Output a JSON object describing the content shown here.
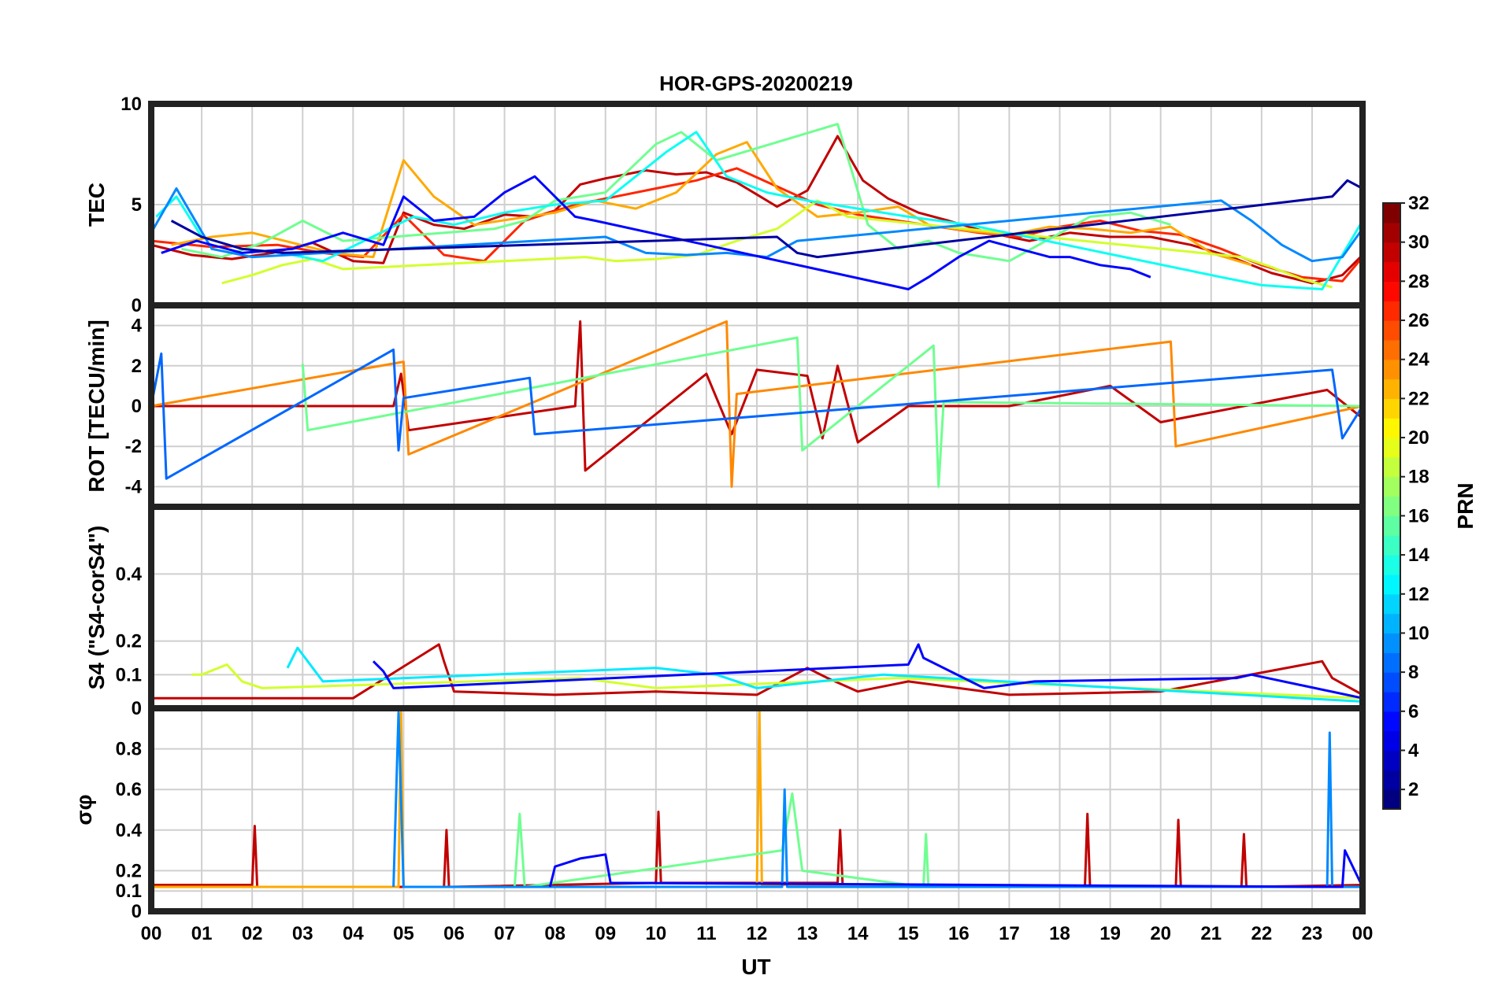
{
  "chart_data": {
    "type": "line",
    "title": "HOR-GPS-20200219",
    "xlabel": "UT",
    "xlim": [
      0,
      24
    ],
    "x_tick_labels": [
      "00",
      "01",
      "02",
      "03",
      "04",
      "05",
      "06",
      "07",
      "08",
      "09",
      "10",
      "11",
      "12",
      "13",
      "14",
      "15",
      "16",
      "17",
      "18",
      "19",
      "20",
      "21",
      "22",
      "23",
      "00"
    ],
    "panels": [
      {
        "name": "tec",
        "ylabel": "TEC",
        "ylim": [
          0,
          10
        ],
        "y_ticks": [
          0,
          5,
          10
        ],
        "y_tick_labels": [
          "0",
          "5",
          "10"
        ],
        "series": [
          {
            "name": "PRN 30",
            "prn": 30,
            "x": [
              0,
              0.8,
              1.6,
              2.4,
              3.2,
              4.0,
              4.6,
              5.0,
              5.6,
              6.2,
              7.0,
              7.6,
              8.0,
              8.5,
              9.0,
              9.8,
              10.4,
              11.0,
              11.6,
              12.4,
              13.0,
              13.6,
              14.1,
              14.6,
              15.2,
              15.8,
              16.6,
              17.4,
              18.2,
              19.0,
              19.8,
              20.6,
              21.4,
              22.2,
              23.0,
              23.6,
              24
            ],
            "y": [
              3.0,
              2.5,
              2.3,
              2.6,
              3.1,
              2.2,
              2.1,
              4.6,
              4.0,
              3.8,
              4.5,
              4.4,
              4.7,
              6.0,
              6.3,
              6.7,
              6.5,
              6.6,
              6.1,
              4.9,
              5.7,
              8.4,
              6.2,
              5.3,
              4.6,
              4.2,
              3.6,
              3.2,
              3.6,
              3.4,
              3.4,
              3.0,
              2.4,
              1.6,
              1.1,
              1.5,
              2.5
            ]
          },
          {
            "name": "PRN 27",
            "prn": 27,
            "x": [
              0,
              1.2,
              2.5,
              3.4,
              4.2,
              5.0,
              5.8,
              6.6,
              7.4,
              8.4,
              9.2,
              10.0,
              10.8,
              11.6,
              12.4,
              13.2,
              14.0,
              14.8,
              15.6,
              16.4,
              17.2,
              18.0,
              18.8,
              19.6,
              20.4,
              21.2,
              22.0,
              22.8,
              23.6,
              24
            ],
            "y": [
              3.2,
              2.9,
              3.0,
              2.6,
              2.4,
              4.5,
              2.5,
              2.2,
              4.2,
              5.0,
              5.4,
              5.8,
              6.2,
              6.8,
              5.9,
              5.0,
              4.5,
              4.2,
              3.9,
              3.6,
              3.4,
              3.9,
              4.2,
              3.7,
              3.5,
              2.8,
              2.0,
              1.4,
              1.2,
              2.4
            ]
          },
          {
            "name": "PRN 23",
            "prn": 23,
            "x": [
              0.4,
              1.2,
              2.0,
              2.8,
              3.6,
              4.4,
              5.0,
              5.6,
              6.4,
              7.2,
              8.0,
              8.8,
              9.6,
              10.4,
              11.2,
              11.8,
              12.4,
              13.2,
              14.0,
              14.8,
              15.4,
              16.2,
              17.0,
              17.8,
              18.6,
              19.4,
              20.2,
              21.0,
              21.8
            ],
            "y": [
              3.0,
              3.4,
              3.6,
              3.1,
              2.6,
              2.4,
              7.2,
              5.4,
              4.0,
              4.3,
              4.6,
              5.2,
              4.8,
              5.6,
              7.5,
              8.1,
              5.8,
              4.4,
              4.6,
              4.9,
              4.0,
              3.7,
              3.5,
              3.9,
              3.8,
              3.6,
              3.9,
              2.6,
              2.0
            ]
          },
          {
            "name": "PRN 19",
            "prn": 19,
            "x": [
              1.4,
              2.0,
              2.6,
              3.2,
              3.8,
              8.6,
              9.2,
              10.0,
              10.8,
              11.6,
              12.4,
              13.2,
              13.8,
              21.6,
              22.2,
              22.8,
              23.4
            ],
            "y": [
              1.1,
              1.5,
              2.0,
              2.3,
              1.8,
              2.4,
              2.2,
              2.3,
              2.5,
              3.2,
              3.8,
              5.2,
              4.4,
              2.4,
              1.9,
              1.3,
              0.9
            ]
          },
          {
            "name": "PRN 16",
            "prn": 16,
            "x": [
              0.6,
              1.4,
              2.2,
              3.0,
              3.8,
              6.8,
              7.4,
              8.0,
              9.0,
              10.0,
              10.5,
              11.2,
              13.6,
              14.2,
              14.8,
              15.4,
              16.0,
              17.0,
              18.6,
              19.4,
              20.2
            ],
            "y": [
              2.8,
              2.4,
              3.1,
              4.2,
              3.2,
              3.8,
              4.2,
              5.2,
              5.6,
              8.0,
              8.6,
              7.2,
              9.0,
              4.0,
              2.8,
              3.2,
              2.6,
              2.2,
              4.4,
              4.6,
              4.0
            ]
          },
          {
            "name": "PRN 13",
            "prn": 13,
            "x": [
              0.1,
              0.5,
              1.0,
              1.8,
              2.6,
              3.4,
              5.2,
              6.0,
              7.0,
              8.0,
              9.0,
              10.2,
              10.8,
              11.4,
              12.2,
              13.0,
              14.0,
              15.0,
              16.2,
              21.2,
              22.0,
              22.6,
              23.2,
              24
            ],
            "y": [
              4.4,
              5.4,
              3.4,
              2.8,
              2.6,
              2.2,
              4.4,
              4.0,
              4.6,
              5.0,
              5.2,
              7.6,
              8.6,
              6.4,
              5.6,
              5.2,
              4.8,
              4.4,
              4.0,
              1.4,
              1.0,
              0.9,
              0.8,
              4.2
            ]
          },
          {
            "name": "PRN 9",
            "prn": 9,
            "x": [
              0,
              0.5,
              1.2,
              2.0,
              9.0,
              9.8,
              10.6,
              11.4,
              12.2,
              12.8,
              21.2,
              21.8,
              22.4,
              23.0,
              23.6,
              24
            ],
            "y": [
              3.6,
              5.8,
              2.8,
              2.4,
              3.4,
              2.6,
              2.5,
              2.6,
              2.4,
              3.2,
              5.2,
              4.2,
              3.0,
              2.2,
              2.4,
              3.8
            ]
          },
          {
            "name": "PRN 5",
            "prn": 5,
            "x": [
              0.2,
              0.9,
              1.8,
              2.8,
              3.8,
              4.6,
              5.0,
              5.6,
              6.4,
              7.0,
              7.6,
              8.4,
              8.8,
              15.0,
              15.4,
              16.0,
              16.6,
              17.2,
              17.8,
              18.2,
              18.8,
              19.4,
              19.8
            ],
            "y": [
              2.6,
              3.2,
              2.6,
              2.8,
              3.6,
              3.0,
              5.4,
              4.2,
              4.4,
              5.6,
              6.4,
              4.4,
              4.2,
              0.8,
              1.4,
              2.4,
              3.2,
              2.8,
              2.4,
              2.4,
              2.0,
              1.8,
              1.4
            ]
          },
          {
            "name": "PRN 2",
            "prn": 2,
            "x": [
              0.4,
              1.0,
              1.8,
              2.6,
              12.4,
              12.8,
              13.2,
              23.4,
              23.7,
              24
            ],
            "y": [
              4.2,
              3.4,
              2.8,
              2.6,
              3.4,
              2.6,
              2.4,
              5.4,
              6.2,
              5.8
            ]
          }
        ]
      },
      {
        "name": "rot",
        "ylabel": "ROT [TECU/min]",
        "ylim": [
          -5,
          5
        ],
        "y_ticks": [
          -4,
          -2,
          0,
          2,
          4
        ],
        "y_tick_labels": [
          "-4",
          "-2",
          "0",
          "2",
          "4"
        ],
        "series": [
          {
            "name": "PRN 30 ROT",
            "prn": 30,
            "x": [
              0,
              4.8,
              4.95,
              5.1,
              8.4,
              8.5,
              8.6,
              11.0,
              11.5,
              12.0,
              13.0,
              13.3,
              13.6,
              14.0,
              15.0,
              17.0,
              19.0,
              20.0,
              23.3,
              24
            ],
            "y": [
              0,
              0,
              1.6,
              -1.2,
              0,
              4.2,
              -3.2,
              1.6,
              -1.4,
              1.8,
              1.5,
              -1.6,
              2.0,
              -1.8,
              0,
              0,
              1.0,
              -0.8,
              0.8,
              -0.6
            ]
          },
          {
            "name": "PRN 24 ROT",
            "prn": 24,
            "x": [
              0,
              5.0,
              5.1,
              11.4,
              11.5,
              11.6,
              20.2,
              20.3,
              24
            ],
            "y": [
              0,
              2.2,
              -2.4,
              4.2,
              -4.0,
              0.6,
              3.2,
              -2.0,
              0
            ]
          },
          {
            "name": "PRN 16 ROT",
            "prn": 16,
            "x": [
              3.0,
              3.1,
              12.8,
              12.9,
              15.5,
              15.6,
              15.7,
              24
            ],
            "y": [
              2.1,
              -1.2,
              3.4,
              -2.2,
              3.0,
              -4.0,
              0.2,
              0
            ]
          },
          {
            "name": "PRN 8 ROT",
            "prn": 8,
            "x": [
              0,
              0.2,
              0.3,
              4.8,
              4.9,
              5.0,
              7.5,
              7.6,
              23.4,
              23.6,
              24
            ],
            "y": [
              0,
              2.6,
              -3.6,
              2.8,
              -2.2,
              0.4,
              1.4,
              -1.4,
              1.8,
              -1.6,
              0
            ]
          }
        ]
      },
      {
        "name": "s4",
        "ylabel": "S4 (\"S4-corS4\")",
        "ylim": [
          0,
          0.6
        ],
        "y_ticks": [
          0,
          0.1,
          0.2,
          0.4
        ],
        "y_tick_labels": [
          "0",
          "0.1",
          "0.2",
          "0.4"
        ],
        "series": [
          {
            "name": "PRN 30 S4",
            "prn": 30,
            "x": [
              0,
              2.0,
              4.0,
              5.7,
              5.8,
              6.0,
              8.0,
              10.0,
              12.0,
              13.0,
              13.4,
              14.0,
              15.0,
              17.0,
              20.0,
              23.2,
              23.4,
              24
            ],
            "y": [
              0.03,
              0.03,
              0.03,
              0.19,
              0.14,
              0.05,
              0.04,
              0.05,
              0.04,
              0.12,
              0.09,
              0.05,
              0.08,
              0.04,
              0.05,
              0.14,
              0.09,
              0.04
            ]
          },
          {
            "name": "PRN 19 S4",
            "prn": 19,
            "x": [
              0.8,
              1.0,
              1.5,
              1.8,
              2.2,
              8.5,
              9.0,
              10.0,
              14.8,
              24
            ],
            "y": [
              0.1,
              0.1,
              0.13,
              0.08,
              0.06,
              0.09,
              0.08,
              0.06,
              0.09,
              0.03
            ]
          },
          {
            "name": "PRN 12 S4",
            "prn": 12,
            "x": [
              2.7,
              2.9,
              3.1,
              3.4,
              10.0,
              11.2,
              12.0,
              14.5,
              24
            ],
            "y": [
              0.12,
              0.18,
              0.14,
              0.08,
              0.12,
              0.1,
              0.06,
              0.1,
              0.02
            ]
          },
          {
            "name": "PRN 5 S4",
            "prn": 5,
            "x": [
              4.4,
              4.6,
              4.8,
              15.0,
              15.2,
              15.3,
              16.5,
              17.5,
              21.5,
              21.8,
              24
            ],
            "y": [
              0.14,
              0.11,
              0.06,
              0.13,
              0.19,
              0.15,
              0.06,
              0.08,
              0.09,
              0.1,
              0.03
            ]
          }
        ]
      },
      {
        "name": "sigma",
        "ylabel": "σφ",
        "ylim": [
          0,
          1.0
        ],
        "y_ticks": [
          0,
          0.1,
          0.2,
          0.4,
          0.6,
          0.8
        ],
        "y_tick_labels": [
          "0",
          "0.1",
          "0.2",
          "0.4",
          "0.6",
          "0.8"
        ],
        "series": [
          {
            "name": "PRN 30 σφ",
            "prn": 30,
            "x": [
              0,
              2.0,
              2.05,
              2.1,
              5.8,
              5.85,
              5.9,
              10.0,
              10.05,
              10.1,
              13.6,
              13.65,
              13.7,
              18.5,
              18.55,
              18.6,
              20.3,
              20.35,
              20.4,
              21.6,
              21.65,
              21.7,
              24
            ],
            "y": [
              0.13,
              0.13,
              0.42,
              0.12,
              0.12,
              0.4,
              0.12,
              0.14,
              0.49,
              0.14,
              0.14,
              0.4,
              0.13,
              0.12,
              0.48,
              0.12,
              0.12,
              0.45,
              0.12,
              0.12,
              0.38,
              0.12,
              0.13
            ]
          },
          {
            "name": "PRN 23 σφ",
            "prn": 23,
            "x": [
              0,
              4.9,
              4.95,
              5.0,
              12.0,
              12.05,
              12.1,
              24
            ],
            "y": [
              0.12,
              0.12,
              0.98,
              0.12,
              0.12,
              1.0,
              0.13,
              0.12
            ]
          },
          {
            "name": "PRN 16 σφ",
            "prn": 16,
            "x": [
              7.2,
              7.3,
              7.4,
              12.5,
              12.7,
              12.9,
              15.3,
              15.35,
              15.4,
              24
            ],
            "y": [
              0.12,
              0.48,
              0.12,
              0.3,
              0.58,
              0.2,
              0.12,
              0.38,
              0.12,
              0.12
            ]
          },
          {
            "name": "PRN 9 σφ",
            "prn": 9,
            "x": [
              4.8,
              4.9,
              5.0,
              12.5,
              12.55,
              12.6,
              23.3,
              23.35,
              23.4,
              24
            ],
            "y": [
              0.12,
              0.98,
              0.12,
              0.12,
              0.6,
              0.12,
              0.12,
              0.88,
              0.12,
              0.12
            ]
          },
          {
            "name": "PRN 5 σφ",
            "prn": 5,
            "x": [
              7.9,
              8.0,
              8.5,
              9.0,
              9.1,
              23.6,
              23.65,
              24
            ],
            "y": [
              0.12,
              0.22,
              0.26,
              0.28,
              0.14,
              0.12,
              0.3,
              0.12
            ]
          }
        ]
      }
    ],
    "colorbar": {
      "label": "PRN",
      "range": [
        1,
        32
      ],
      "tick_labels": [
        "2",
        "4",
        "6",
        "8",
        "10",
        "12",
        "14",
        "16",
        "18",
        "20",
        "22",
        "24",
        "26",
        "28",
        "30",
        "32"
      ],
      "colormap": "jet"
    }
  }
}
